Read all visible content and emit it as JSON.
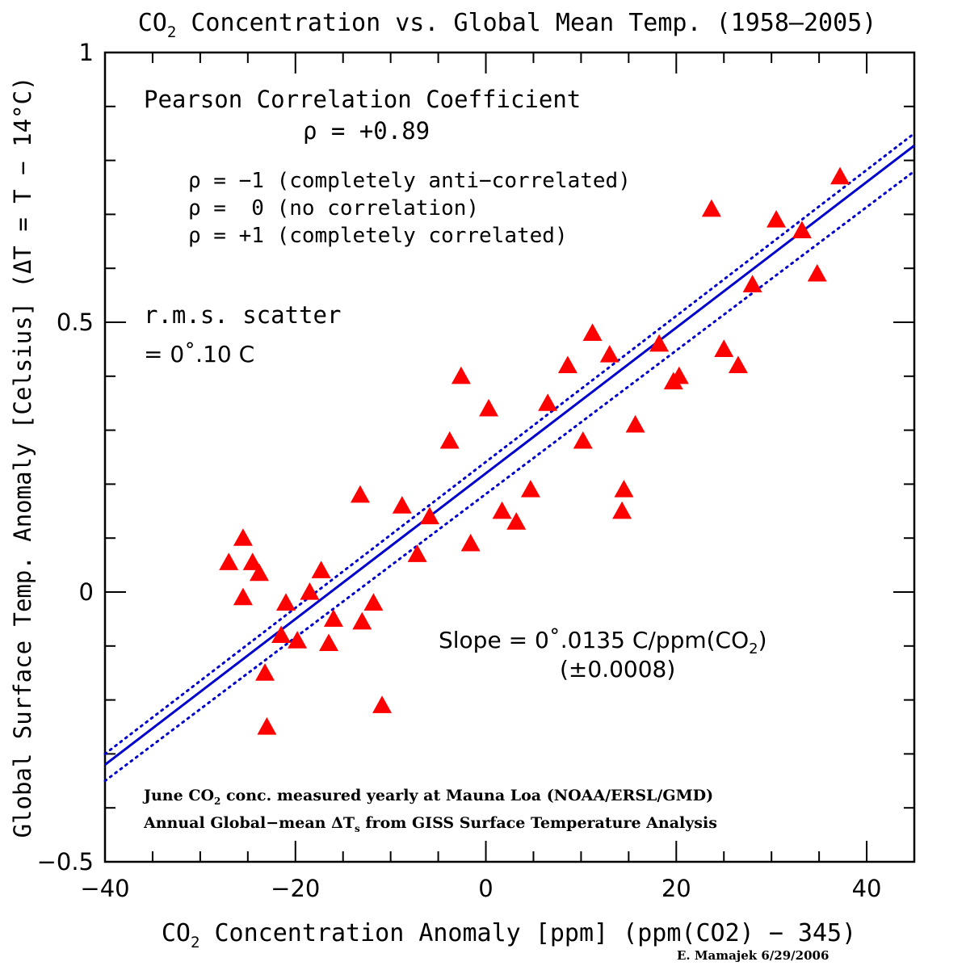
{
  "chart_data": {
    "type": "scatter",
    "title_main": "CO",
    "title_sub": "2",
    "title_rest": " Concentration vs. Global Mean Temp. (1958–2005)",
    "xlabel_main": "CO",
    "xlabel_sub": "2",
    "xlabel_rest": " Concentration Anomaly [ppm] (ppm(CO2) − 345)",
    "ylabel": "Global Surface Temp. Anomaly [Celsius] (ΔT = T − 14°C)",
    "xlim": [
      -40,
      45
    ],
    "ylim": [
      -0.5,
      1
    ],
    "x_ticks": [
      {
        "v": -40,
        "label": "−40"
      },
      {
        "v": -20,
        "label": "−20"
      },
      {
        "v": 0,
        "label": "0"
      },
      {
        "v": 20,
        "label": "20"
      },
      {
        "v": 40,
        "label": "40"
      }
    ],
    "y_ticks": [
      {
        "v": -0.5,
        "label": "−0.5"
      },
      {
        "v": 0,
        "label": "0"
      },
      {
        "v": 0.5,
        "label": "0.5"
      },
      {
        "v": 1,
        "label": "1"
      }
    ],
    "marker_color": "#ff0000",
    "line_color": "#0000cc",
    "fit": {
      "slope": 0.0135,
      "intercept": 0.22
    },
    "confidence_band": {
      "upper_at_x_max": 0.85,
      "lower_at_x_max": 0.78,
      "upper_at_x_min": -0.3,
      "lower_at_x_min": -0.35
    },
    "points": [
      {
        "x": -27.0,
        "y": 0.055
      },
      {
        "x": -25.5,
        "y": 0.1
      },
      {
        "x": -25.5,
        "y": -0.01
      },
      {
        "x": -24.5,
        "y": 0.055
      },
      {
        "x": -23.8,
        "y": 0.035
      },
      {
        "x": -23.2,
        "y": -0.15
      },
      {
        "x": -23.0,
        "y": -0.25
      },
      {
        "x": -21.5,
        "y": -0.08
      },
      {
        "x": -21.0,
        "y": -0.02
      },
      {
        "x": -19.8,
        "y": -0.09
      },
      {
        "x": -18.5,
        "y": 0.0
      },
      {
        "x": -17.3,
        "y": 0.04
      },
      {
        "x": -16.5,
        "y": -0.095
      },
      {
        "x": -16.0,
        "y": -0.05
      },
      {
        "x": -13.2,
        "y": 0.18
      },
      {
        "x": -13.0,
        "y": -0.055
      },
      {
        "x": -11.8,
        "y": -0.02
      },
      {
        "x": -10.9,
        "y": -0.21
      },
      {
        "x": -8.8,
        "y": 0.16
      },
      {
        "x": -7.2,
        "y": 0.07
      },
      {
        "x": -5.9,
        "y": 0.14
      },
      {
        "x": -3.8,
        "y": 0.28
      },
      {
        "x": -2.6,
        "y": 0.4
      },
      {
        "x": -1.6,
        "y": 0.09
      },
      {
        "x": 0.3,
        "y": 0.34
      },
      {
        "x": 1.7,
        "y": 0.15
      },
      {
        "x": 3.2,
        "y": 0.13
      },
      {
        "x": 4.7,
        "y": 0.19
      },
      {
        "x": 6.5,
        "y": 0.35
      },
      {
        "x": 8.6,
        "y": 0.42
      },
      {
        "x": 10.2,
        "y": 0.28
      },
      {
        "x": 11.2,
        "y": 0.48
      },
      {
        "x": 13.0,
        "y": 0.44
      },
      {
        "x": 14.3,
        "y": 0.15
      },
      {
        "x": 14.5,
        "y": 0.19
      },
      {
        "x": 15.7,
        "y": 0.31
      },
      {
        "x": 18.2,
        "y": 0.46
      },
      {
        "x": 19.7,
        "y": 0.39
      },
      {
        "x": 20.3,
        "y": 0.4
      },
      {
        "x": 23.7,
        "y": 0.71
      },
      {
        "x": 25.0,
        "y": 0.45
      },
      {
        "x": 26.5,
        "y": 0.42
      },
      {
        "x": 28.0,
        "y": 0.57
      },
      {
        "x": 30.5,
        "y": 0.69
      },
      {
        "x": 33.2,
        "y": 0.67
      },
      {
        "x": 34.8,
        "y": 0.59
      },
      {
        "x": 37.2,
        "y": 0.77
      }
    ],
    "annotations": {
      "pearson_title": "Pearson Correlation Coefficient",
      "pearson_value": "ρ = +0.89",
      "rho_neg": "ρ = −1 (completely anti−correlated)",
      "rho_zero": "ρ =  0 (no correlation)",
      "rho_pos": "ρ = +1 (completely correlated)",
      "rms_title": "r.m.s. scatter",
      "rms_value": "= 0˚.10 C",
      "slope_main": "Slope = 0˚.0135 C/ppm(CO",
      "slope_sub": "2",
      "slope_close": ")",
      "slope_err": "(±0.0008)",
      "note1_main": "June CO",
      "note1_sub": "2",
      "note1_rest": " conc. measured yearly at Mauna Loa  (NOAA/ERSL/GMD)",
      "note2_main": "Annual Global−mean ΔT",
      "note2_sub": "s",
      "note2_rest": " from GISS Surface Temperature Analysis",
      "credit": "E. Mamajek 6/29/2006"
    }
  }
}
